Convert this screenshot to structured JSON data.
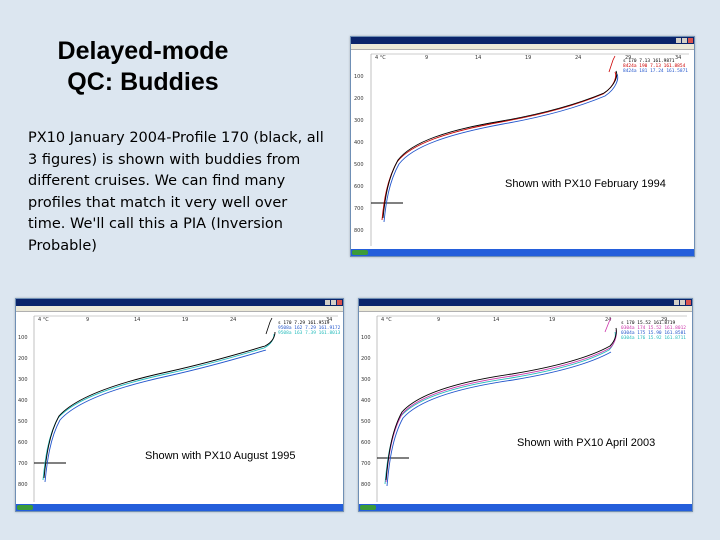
{
  "slide": {
    "title_line1": "Delayed-mode",
    "title_line2": "QC:  Buddies",
    "body": "PX10 January 2004-Profile 170 (black, all 3 figures) is shown with buddies from different cruises. We can find many profiles that match it very well over time.   We'll call this a PIA (Inversion Probable)"
  },
  "captions": {
    "feb1994": "Shown with PX10 February 1994",
    "aug1995": "Shown with PX10 August 1995",
    "apr2003": "Shown with PX10 April 2003"
  },
  "colors": {
    "background": "#dce6f0",
    "profile_black": "#000000",
    "buddy_red": "#cc0000",
    "buddy_blue": "#2255cc",
    "buddy_magenta": "#cc33aa",
    "buddy_cyan": "#22bbbb"
  },
  "screenshots": [
    {
      "id": "feb1994",
      "x_ticks": [
        "4 °C",
        "9",
        "14",
        "19",
        "24",
        "29",
        "34"
      ],
      "y_ticks": [
        "100",
        "200",
        "300",
        "400",
        "500",
        "600",
        "700",
        "800"
      ],
      "legend": [
        "s 170    7.13 161.9871",
        "8424a 190  7.13 161.8854",
        "8424a 181  17.24 161.5871"
      ],
      "legend_colors": [
        "#000000",
        "#cc0000",
        "#2255cc"
      ]
    },
    {
      "id": "aug1995",
      "x_ticks": [
        "4 °C",
        "9",
        "14",
        "19",
        "24",
        "34"
      ],
      "y_ticks": [
        "100",
        "200",
        "300",
        "400",
        "500",
        "600",
        "700",
        "800"
      ],
      "legend": [
        "s 170    7.29 161.9519",
        "9508a 162  7.29 161.9172",
        "9508a 163  7.39 161.8013"
      ],
      "legend_colors": [
        "#000000",
        "#2255cc",
        "#22bbbb"
      ]
    },
    {
      "id": "apr2003",
      "x_ticks": [
        "4 °C",
        "9",
        "14",
        "19",
        "24",
        "29"
      ],
      "y_ticks": [
        "100",
        "200",
        "300",
        "400",
        "500",
        "600",
        "700",
        "800"
      ],
      "legend": [
        "s 170    15.52 161.8719",
        "0304a 174  15.52 161.8012",
        "0304a 175  15.90 161.8581",
        "0304a 176  15.92 161.8711"
      ],
      "legend_colors": [
        "#000000",
        "#cc33aa",
        "#2255cc",
        "#22bbbb"
      ]
    }
  ]
}
